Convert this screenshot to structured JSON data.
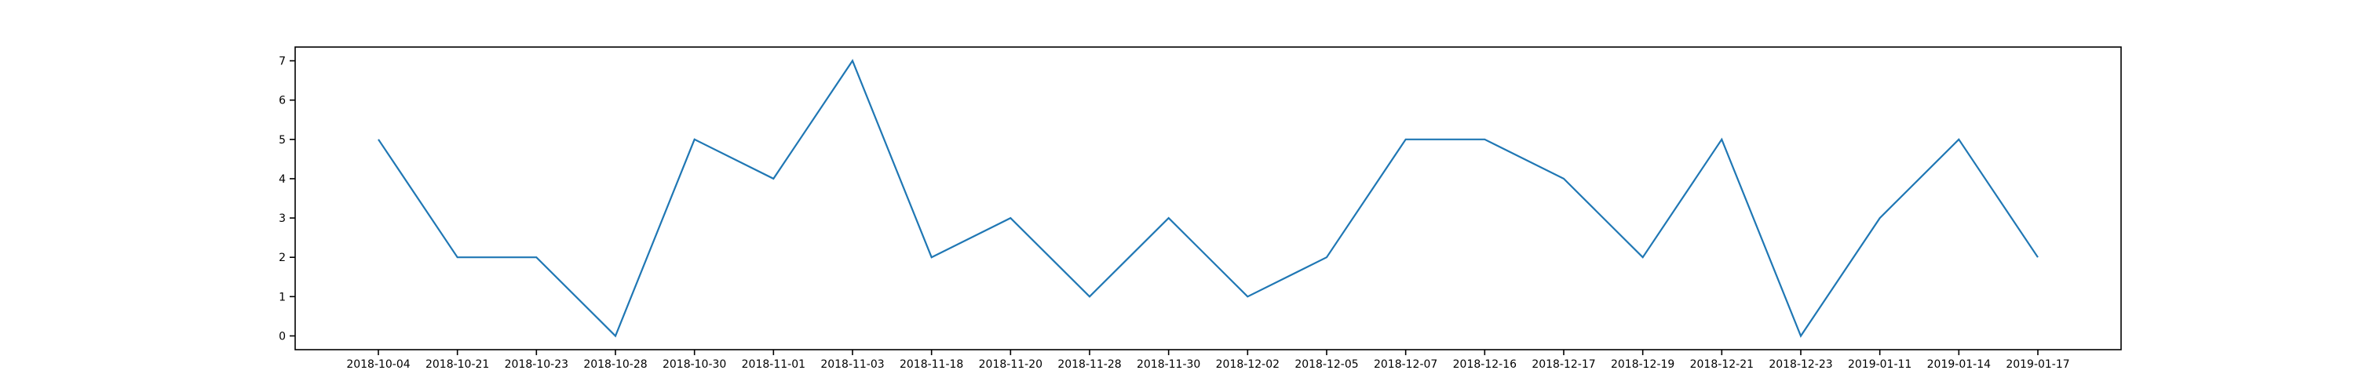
{
  "chart_data": {
    "type": "line",
    "categories": [
      "2018-10-04",
      "2018-10-21",
      "2018-10-23",
      "2018-10-28",
      "2018-10-30",
      "2018-11-01",
      "2018-11-03",
      "2018-11-18",
      "2018-11-20",
      "2018-11-28",
      "2018-11-30",
      "2018-12-02",
      "2018-12-05",
      "2018-12-07",
      "2018-12-16",
      "2018-12-17",
      "2018-12-19",
      "2018-12-21",
      "2018-12-23",
      "2019-01-11",
      "2019-01-14",
      "2019-01-17"
    ],
    "series": [
      {
        "values": [
          5,
          2,
          2,
          0,
          5,
          4,
          7,
          2,
          3,
          1,
          3,
          1,
          2,
          5,
          5,
          4,
          2,
          5,
          0,
          3,
          5,
          2
        ]
      }
    ],
    "yticks": [
      0,
      1,
      2,
      3,
      4,
      5,
      6,
      7
    ],
    "ylim": [
      -0.35,
      7.35
    ],
    "title": "",
    "xlabel": "",
    "ylabel": "",
    "grid": false,
    "colors": {
      "series": "#1f77b4",
      "axes": "#000000"
    }
  }
}
